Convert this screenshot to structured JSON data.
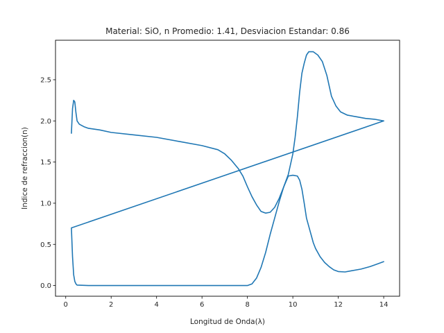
{
  "chart_data": {
    "type": "line",
    "title": "Material: SiO, n Promedio: 1.41, Desviacion Estandar: 0.86",
    "xlabel": "Longitud de Onda(λ)",
    "ylabel": "Indice de refraccion(n)",
    "xlim": [
      -0.45,
      14.7
    ],
    "ylim": [
      -0.13,
      2.98
    ],
    "xticks": [
      0,
      2,
      4,
      6,
      8,
      10,
      12,
      14
    ],
    "yticks": [
      0.0,
      0.5,
      1.0,
      1.5,
      2.0,
      2.5
    ],
    "grid": false,
    "color": "#1f77b4",
    "series": [
      {
        "values": [
          [
            0.25,
            1.85
          ],
          [
            0.3,
            2.15
          ],
          [
            0.35,
            2.25
          ],
          [
            0.4,
            2.23
          ],
          [
            0.45,
            2.1
          ],
          [
            0.5,
            2.0
          ],
          [
            0.6,
            1.96
          ],
          [
            0.8,
            1.93
          ],
          [
            1.0,
            1.91
          ],
          [
            1.5,
            1.89
          ],
          [
            2.0,
            1.86
          ],
          [
            3.0,
            1.83
          ],
          [
            4.0,
            1.8
          ],
          [
            5.0,
            1.75
          ],
          [
            6.0,
            1.7
          ],
          [
            6.7,
            1.65
          ],
          [
            7.0,
            1.6
          ],
          [
            7.3,
            1.52
          ],
          [
            7.6,
            1.42
          ],
          [
            7.8,
            1.33
          ],
          [
            8.0,
            1.2
          ],
          [
            8.2,
            1.08
          ],
          [
            8.4,
            0.98
          ],
          [
            8.6,
            0.9
          ],
          [
            8.8,
            0.88
          ],
          [
            9.0,
            0.89
          ],
          [
            9.2,
            0.95
          ],
          [
            9.4,
            1.06
          ],
          [
            9.6,
            1.2
          ],
          [
            9.8,
            1.35
          ],
          [
            10.0,
            1.6
          ],
          [
            10.1,
            1.8
          ],
          [
            10.2,
            2.05
          ],
          [
            10.3,
            2.35
          ],
          [
            10.4,
            2.58
          ],
          [
            10.5,
            2.7
          ],
          [
            10.6,
            2.8
          ],
          [
            10.7,
            2.84
          ],
          [
            10.9,
            2.84
          ],
          [
            11.1,
            2.8
          ],
          [
            11.3,
            2.72
          ],
          [
            11.5,
            2.55
          ],
          [
            11.7,
            2.3
          ],
          [
            11.9,
            2.18
          ],
          [
            12.1,
            2.11
          ],
          [
            12.4,
            2.07
          ],
          [
            12.8,
            2.05
          ],
          [
            13.2,
            2.03
          ],
          [
            13.6,
            2.02
          ],
          [
            14.0,
            2.0
          ]
        ]
      },
      {
        "values": [
          [
            14.0,
            2.0
          ],
          [
            0.25,
            0.7
          ],
          [
            0.3,
            0.35
          ],
          [
            0.35,
            0.13
          ],
          [
            0.4,
            0.05
          ],
          [
            0.45,
            0.02
          ],
          [
            0.5,
            0.005
          ],
          [
            1.0,
            0.0
          ],
          [
            3.0,
            0.0
          ],
          [
            5.0,
            0.0
          ],
          [
            7.0,
            0.0
          ],
          [
            8.0,
            0.0
          ],
          [
            8.2,
            0.02
          ],
          [
            8.4,
            0.09
          ],
          [
            8.6,
            0.22
          ],
          [
            8.8,
            0.4
          ],
          [
            9.0,
            0.62
          ],
          [
            9.2,
            0.82
          ],
          [
            9.4,
            1.02
          ],
          [
            9.6,
            1.2
          ],
          [
            9.8,
            1.33
          ],
          [
            10.0,
            1.34
          ],
          [
            10.2,
            1.33
          ],
          [
            10.3,
            1.28
          ],
          [
            10.4,
            1.17
          ],
          [
            10.5,
            1.0
          ],
          [
            10.6,
            0.82
          ],
          [
            10.7,
            0.72
          ],
          [
            10.8,
            0.62
          ],
          [
            10.9,
            0.52
          ],
          [
            11.0,
            0.45
          ],
          [
            11.2,
            0.35
          ],
          [
            11.4,
            0.28
          ],
          [
            11.6,
            0.23
          ],
          [
            11.8,
            0.19
          ],
          [
            12.0,
            0.17
          ],
          [
            12.3,
            0.165
          ],
          [
            12.6,
            0.18
          ],
          [
            13.0,
            0.2
          ],
          [
            13.4,
            0.23
          ],
          [
            13.7,
            0.26
          ],
          [
            14.0,
            0.29
          ]
        ]
      }
    ]
  }
}
